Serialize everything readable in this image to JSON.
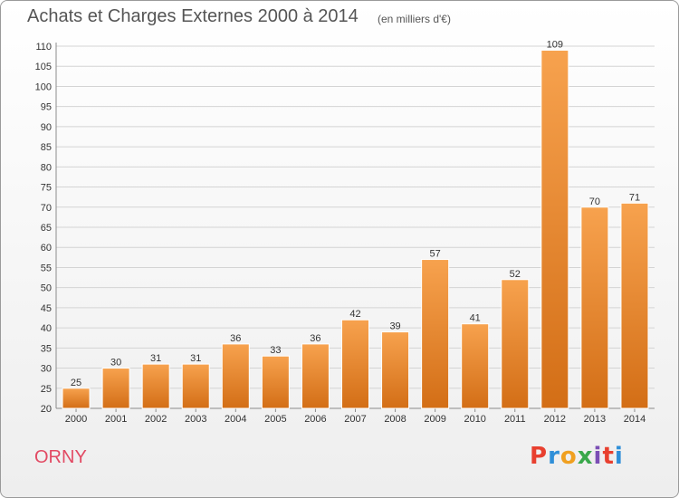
{
  "header": {
    "title": "Achats et Charges Externes 2000 à 2014",
    "unit": "(en milliers d'€)"
  },
  "footer": {
    "commune": "ORNY",
    "logo_text": "Proxiti",
    "logo_colors": [
      "#e8402f",
      "#2f8fd8",
      "#f0a020",
      "#3aa84b",
      "#7b4fb5",
      "#e8402f",
      "#2f8fd8"
    ]
  },
  "colors": {
    "bar_light": "#f7a24e",
    "bar_dark": "#d36e16",
    "commune_text": "#e24a63"
  },
  "chart_data": {
    "type": "bar",
    "title": "Achats et Charges Externes 2000 à 2014",
    "subtitle": "(en milliers d'€)",
    "xlabel": "",
    "ylabel": "",
    "categories": [
      "2000",
      "2001",
      "2002",
      "2003",
      "2004",
      "2005",
      "2006",
      "2007",
      "2008",
      "2009",
      "2010",
      "2011",
      "2012",
      "2013",
      "2014"
    ],
    "values": [
      25,
      30,
      31,
      31,
      36,
      33,
      36,
      42,
      39,
      57,
      41,
      52,
      109,
      70,
      71
    ],
    "ylim": [
      20,
      110
    ],
    "yticks": [
      20,
      25,
      30,
      35,
      40,
      45,
      50,
      55,
      60,
      65,
      70,
      75,
      80,
      85,
      90,
      95,
      100,
      105,
      110
    ],
    "grid": true,
    "data_labels": true,
    "legend": "none"
  }
}
